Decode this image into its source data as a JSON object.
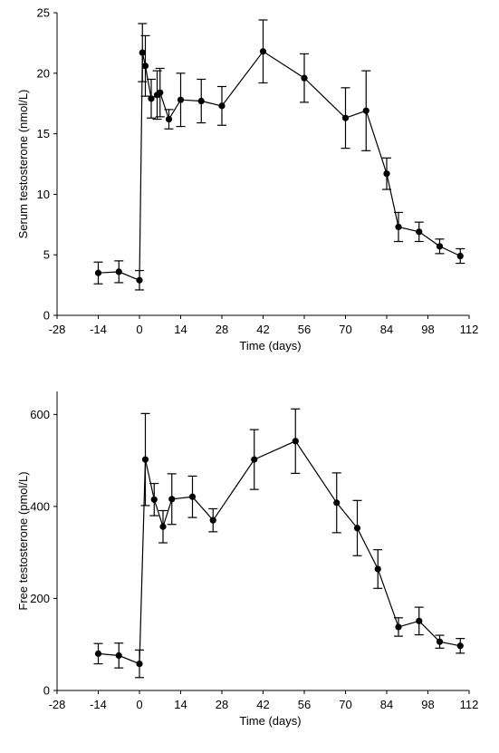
{
  "chart_data": [
    {
      "type": "line",
      "xlabel": "Time (days)",
      "ylabel": "Serum testosterone (nmol/L)",
      "xlim": [
        -28,
        112
      ],
      "ylim": [
        0,
        25
      ],
      "xticks": [
        -28,
        -14,
        0,
        14,
        28,
        42,
        56,
        70,
        84,
        98,
        112
      ],
      "xtick_labels": [
        "-28",
        "-14",
        "0",
        "14",
        "28",
        "42",
        "56",
        "70",
        "84",
        "98",
        "112"
      ],
      "yticks": [
        0,
        5,
        10,
        15,
        20,
        25
      ],
      "ytick_labels": [
        "0",
        "5",
        "10",
        "15",
        "20",
        "25"
      ],
      "grid": false,
      "series": [
        {
          "x": [
            -14,
            -7,
            0,
            1,
            2,
            4,
            6,
            7,
            10,
            14,
            21,
            28,
            42,
            56,
            70,
            77,
            84,
            88,
            95,
            102,
            109
          ],
          "values": [
            3.5,
            3.6,
            2.9,
            21.7,
            20.6,
            17.9,
            18.2,
            18.4,
            16.2,
            17.8,
            17.7,
            17.3,
            21.8,
            19.6,
            16.3,
            16.9,
            11.7,
            7.3,
            6.9,
            5.7,
            4.9
          ],
          "error": [
            0.9,
            0.9,
            0.8,
            2.4,
            2.5,
            1.6,
            2.0,
            2.0,
            0.8,
            2.2,
            1.8,
            1.6,
            2.6,
            2.0,
            2.5,
            3.3,
            1.3,
            1.2,
            0.8,
            0.6,
            0.6
          ]
        }
      ]
    },
    {
      "type": "line",
      "xlabel": "Time (days)",
      "ylabel": "Free testosterone (pmol/L)",
      "xlim": [
        -28,
        112
      ],
      "ylim": [
        0,
        650
      ],
      "xticks": [
        -28,
        -14,
        0,
        14,
        28,
        42,
        56,
        70,
        84,
        98,
        112
      ],
      "xtick_labels": [
        "-28",
        "-14",
        "0",
        "14",
        "28",
        "42",
        "56",
        "70",
        "84",
        "98",
        "112"
      ],
      "yticks": [
        0,
        200,
        400,
        600
      ],
      "ytick_labels": [
        "0",
        "200",
        "400",
        "600"
      ],
      "grid": false,
      "series": [
        {
          "x": [
            -14,
            -7,
            0,
            2,
            5,
            8,
            11,
            18,
            25,
            39,
            53,
            67,
            74,
            81,
            88,
            95,
            102,
            109
          ],
          "values": [
            80,
            76,
            58,
            502,
            415,
            356,
            416,
            421,
            370,
            502,
            542,
            408,
            353,
            264,
            138,
            151,
            106,
            97
          ],
          "error": [
            22,
            27,
            30,
            100,
            35,
            35,
            55,
            45,
            25,
            65,
            70,
            65,
            60,
            42,
            20,
            30,
            14,
            16
          ]
        }
      ]
    }
  ]
}
